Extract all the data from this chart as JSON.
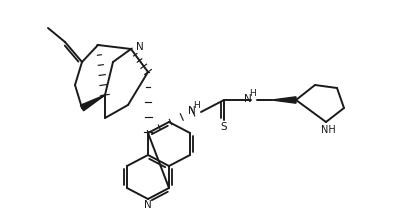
{
  "bg": "#ffffff",
  "lc": "#1a1a1a",
  "figsize": [
    4.18,
    2.14
  ],
  "dpi": 100,
  "xlim": [
    0,
    418
  ],
  "ylim": [
    0,
    214
  ]
}
